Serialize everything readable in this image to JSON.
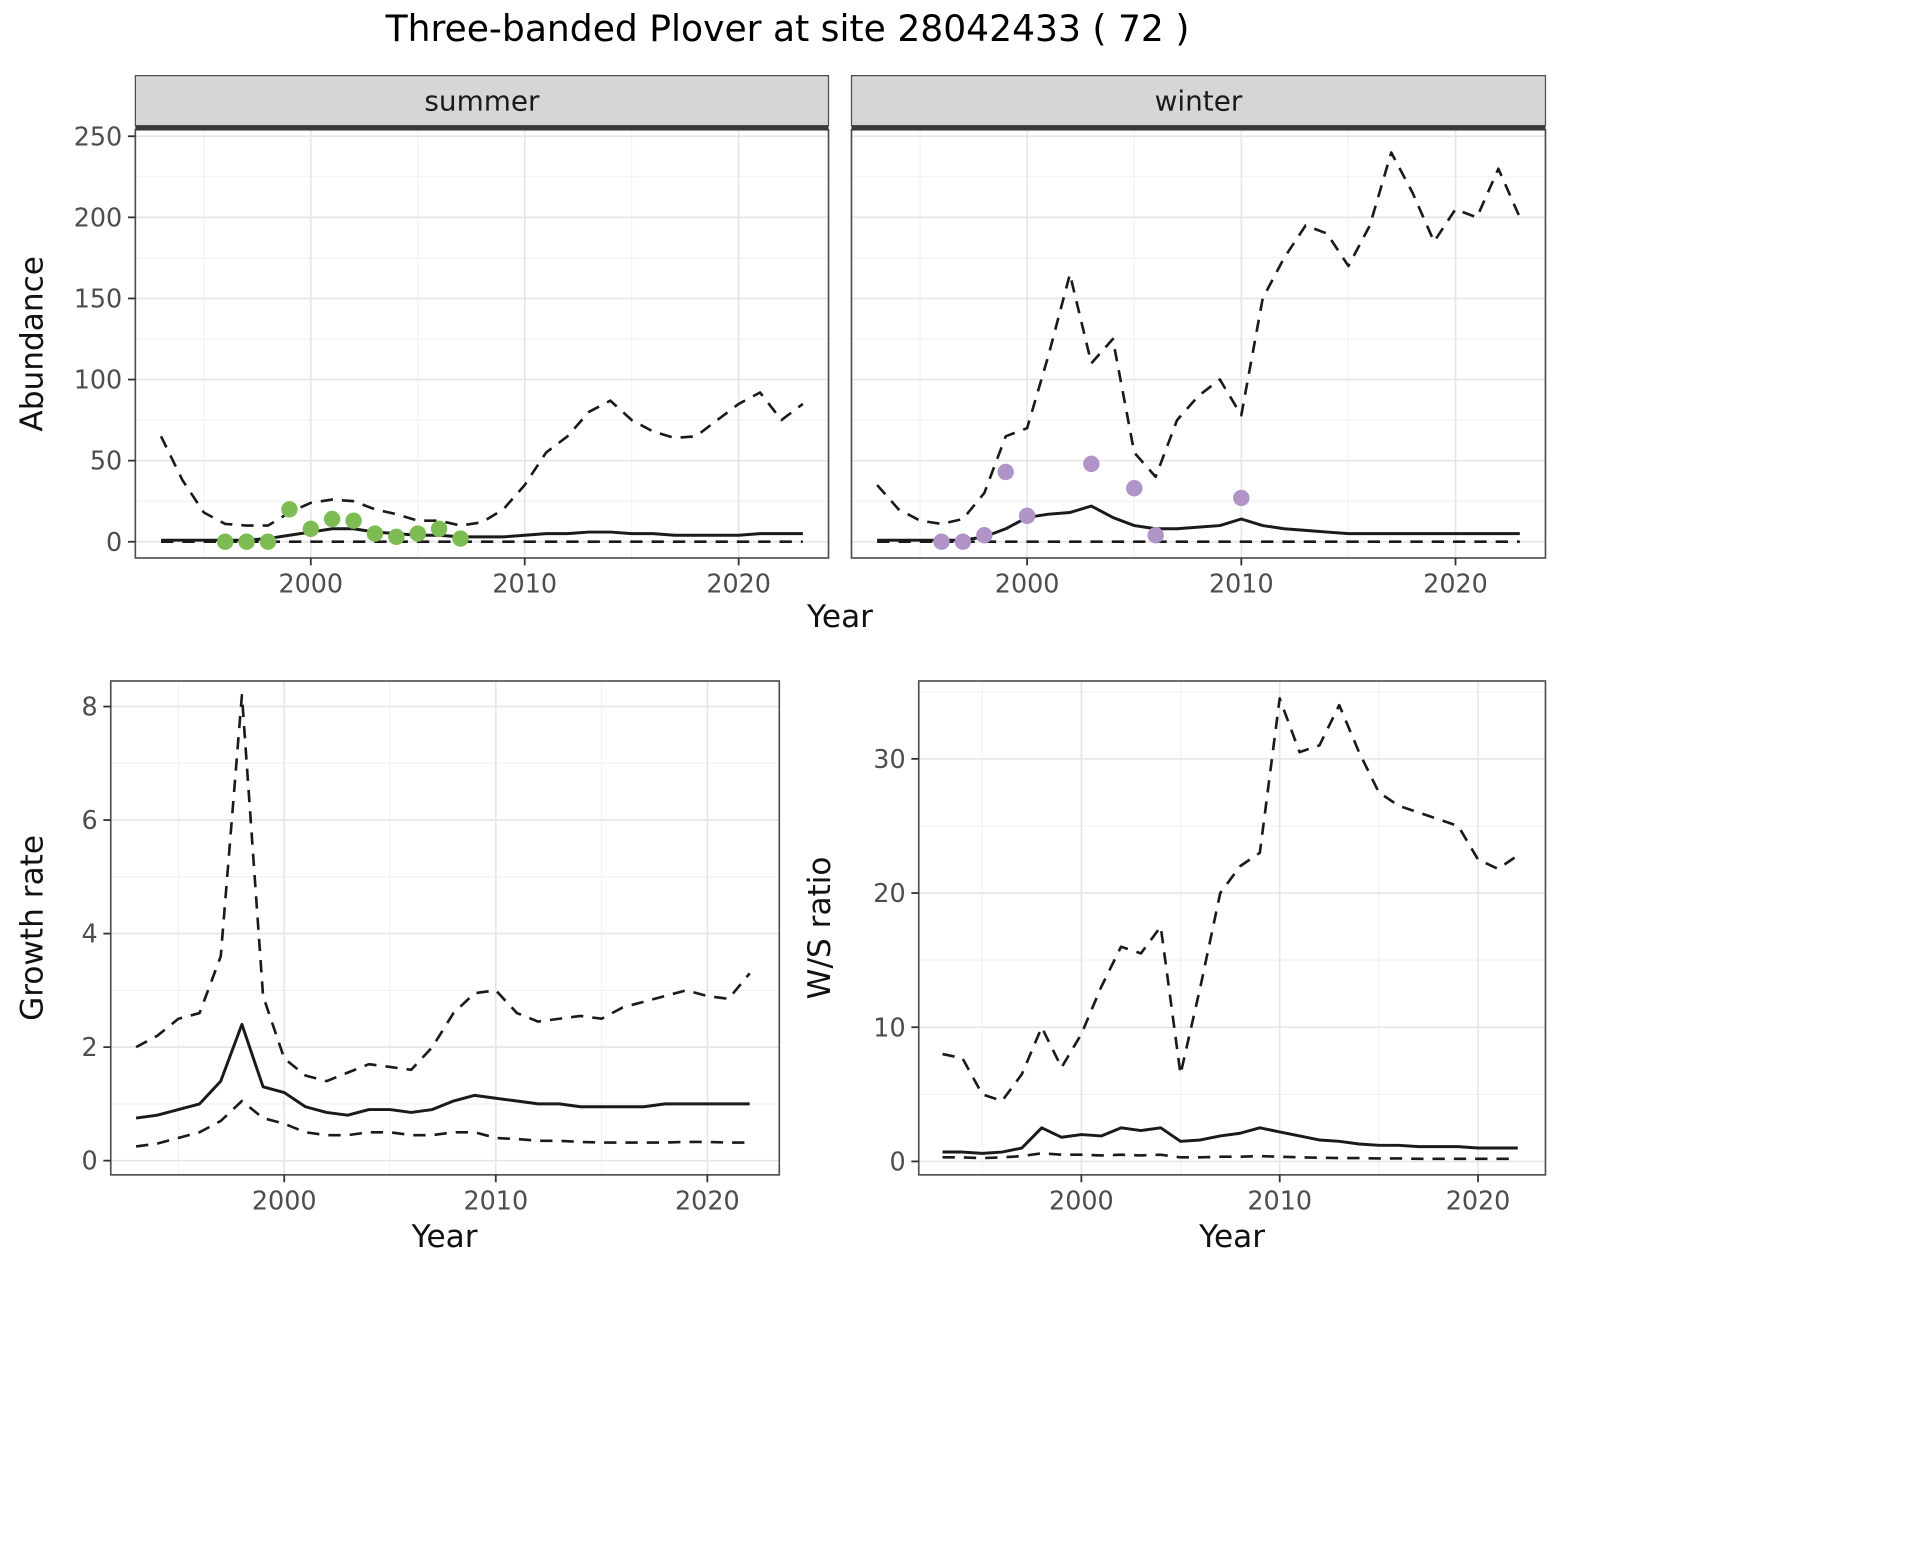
{
  "title": "Three-banded Plover at site 28042433 ( 72 )",
  "theme": {
    "strip_bg": "#d6d6d6",
    "strip_border": "#4d4d4d",
    "strip_underline": "#383838",
    "panel_border": "#4d4d4d",
    "grid_major": "#e6e6e6",
    "grid_minor": "#f2f2f2",
    "line_color": "#1a1a1a",
    "tick_color": "#333333",
    "tick_label_color": "#4d4d4d",
    "summer_point_color": "#7cbc52",
    "winter_point_color": "#b093c7"
  },
  "chart_data": [
    {
      "id": "abundance-summer",
      "type": "line",
      "facet_label": "summer",
      "xlabel": "Year",
      "ylabel": "Abundance",
      "xlim": [
        1991.8,
        2024.2
      ],
      "ylim": [
        -10,
        254
      ],
      "xticks": [
        2000,
        2010,
        2020
      ],
      "xticks_minor": [
        1995,
        2005,
        2015
      ],
      "yticks": [
        0,
        50,
        100,
        150,
        200,
        250
      ],
      "yticks_minor": [
        25,
        75,
        125,
        175,
        225
      ],
      "x": [
        1993,
        1994,
        1995,
        1996,
        1997,
        1998,
        1999,
        2000,
        2001,
        2002,
        2003,
        2004,
        2005,
        2006,
        2007,
        2008,
        2009,
        2010,
        2011,
        2012,
        2013,
        2014,
        2015,
        2016,
        2017,
        2018,
        2019,
        2020,
        2021,
        2022,
        2023
      ],
      "series": [
        {
          "name": "median",
          "style": "solid",
          "values": [
            1,
            1,
            1,
            1,
            1,
            2,
            4,
            6,
            8,
            8,
            6,
            5,
            4,
            4,
            3,
            3,
            3,
            4,
            5,
            5,
            6,
            6,
            5,
            5,
            4,
            4,
            4,
            4,
            5,
            5,
            5
          ]
        },
        {
          "name": "upper-ci",
          "style": "dashed",
          "values": [
            65,
            38,
            18,
            11,
            10,
            10,
            18,
            24,
            26,
            25,
            20,
            17,
            13,
            13,
            10,
            12,
            20,
            35,
            55,
            65,
            80,
            87,
            75,
            68,
            64,
            65,
            75,
            85,
            92,
            75,
            85
          ]
        },
        {
          "name": "lower-ci",
          "style": "dashed",
          "values": [
            0,
            0,
            0,
            0,
            0,
            0,
            0,
            0,
            0,
            0,
            0,
            0,
            0,
            0,
            0,
            0,
            0,
            0,
            0,
            0,
            0,
            0,
            0,
            0,
            0,
            0,
            0,
            0,
            0,
            0,
            0
          ]
        }
      ],
      "points": {
        "name": "observed-summer",
        "color": "#7cbc52",
        "x": [
          1996,
          1997,
          1998,
          1999,
          2000,
          2001,
          2002,
          2003,
          2004,
          2005,
          2006,
          2007
        ],
        "y": [
          0,
          0,
          0,
          20,
          8,
          14,
          13,
          5,
          3,
          5,
          8,
          2
        ]
      }
    },
    {
      "id": "abundance-winter",
      "type": "line",
      "facet_label": "winter",
      "xlabel": "Year",
      "ylabel": "Abundance",
      "xlim": [
        1991.8,
        2024.2
      ],
      "ylim": [
        -10,
        254
      ],
      "xticks": [
        2000,
        2010,
        2020
      ],
      "xticks_minor": [
        1995,
        2005,
        2015
      ],
      "yticks": [
        0,
        50,
        100,
        150,
        200,
        250
      ],
      "yticks_minor": [
        25,
        75,
        125,
        175,
        225
      ],
      "x": [
        1993,
        1994,
        1995,
        1996,
        1997,
        1998,
        1999,
        2000,
        2001,
        2002,
        2003,
        2004,
        2005,
        2006,
        2007,
        2008,
        2009,
        2010,
        2011,
        2012,
        2013,
        2014,
        2015,
        2016,
        2017,
        2018,
        2019,
        2020,
        2021,
        2022,
        2023
      ],
      "series": [
        {
          "name": "median",
          "style": "solid",
          "values": [
            1,
            1,
            1,
            1,
            1,
            3,
            8,
            15,
            17,
            18,
            22,
            15,
            10,
            8,
            8,
            9,
            10,
            14,
            10,
            8,
            7,
            6,
            5,
            5,
            5,
            5,
            5,
            5,
            5,
            5,
            5
          ]
        },
        {
          "name": "upper-ci",
          "style": "dashed",
          "values": [
            35,
            20,
            13,
            11,
            14,
            30,
            65,
            70,
            115,
            165,
            110,
            125,
            55,
            40,
            75,
            90,
            100,
            78,
            150,
            175,
            195,
            190,
            170,
            195,
            240,
            215,
            185,
            205,
            200,
            230,
            200
          ]
        },
        {
          "name": "lower-ci",
          "style": "dashed",
          "values": [
            0,
            0,
            0,
            0,
            0,
            0,
            0,
            0,
            0,
            0,
            0,
            0,
            0,
            0,
            0,
            0,
            0,
            0,
            0,
            0,
            0,
            0,
            0,
            0,
            0,
            0,
            0,
            0,
            0,
            0,
            0
          ]
        }
      ],
      "points": {
        "name": "observed-winter",
        "color": "#b093c7",
        "x": [
          1996,
          1997,
          1998,
          1999,
          2000,
          2003,
          2005,
          2006,
          2010
        ],
        "y": [
          0,
          0,
          4,
          43,
          16,
          48,
          33,
          4,
          27
        ]
      }
    },
    {
      "id": "growth-rate",
      "type": "line",
      "facet_label": "",
      "xlabel": "Year",
      "ylabel": "Growth rate",
      "xlim": [
        1991.8,
        2023.4
      ],
      "ylim": [
        -0.25,
        8.45
      ],
      "xticks": [
        2000,
        2010,
        2020
      ],
      "xticks_minor": [
        1995,
        2005,
        2015
      ],
      "yticks": [
        0,
        2,
        4,
        6,
        8
      ],
      "yticks_minor": [
        1,
        3,
        5,
        7
      ],
      "x": [
        1993,
        1994,
        1995,
        1996,
        1997,
        1998,
        1999,
        2000,
        2001,
        2002,
        2003,
        2004,
        2005,
        2006,
        2007,
        2008,
        2009,
        2010,
        2011,
        2012,
        2013,
        2014,
        2015,
        2016,
        2017,
        2018,
        2019,
        2020,
        2021,
        2022
      ],
      "series": [
        {
          "name": "median",
          "style": "solid",
          "values": [
            0.75,
            0.8,
            0.9,
            1.0,
            1.4,
            2.4,
            1.3,
            1.2,
            0.95,
            0.85,
            0.8,
            0.9,
            0.9,
            0.85,
            0.9,
            1.05,
            1.15,
            1.1,
            1.05,
            1.0,
            1.0,
            0.95,
            0.95,
            0.95,
            0.95,
            1.0,
            1.0,
            1.0,
            1.0,
            1.0
          ]
        },
        {
          "name": "upper-ci",
          "style": "dashed",
          "values": [
            2.0,
            2.2,
            2.5,
            2.6,
            3.6,
            8.2,
            2.9,
            1.8,
            1.5,
            1.4,
            1.55,
            1.7,
            1.65,
            1.6,
            2.0,
            2.6,
            2.95,
            3.0,
            2.6,
            2.45,
            2.5,
            2.55,
            2.5,
            2.7,
            2.8,
            2.9,
            3.0,
            2.9,
            2.85,
            3.3
          ]
        },
        {
          "name": "lower-ci",
          "style": "dashed",
          "values": [
            0.25,
            0.3,
            0.4,
            0.5,
            0.7,
            1.05,
            0.75,
            0.65,
            0.5,
            0.45,
            0.45,
            0.5,
            0.5,
            0.45,
            0.45,
            0.5,
            0.5,
            0.4,
            0.38,
            0.35,
            0.35,
            0.33,
            0.32,
            0.32,
            0.32,
            0.32,
            0.33,
            0.33,
            0.32,
            0.32
          ]
        }
      ]
    },
    {
      "id": "ws-ratio",
      "type": "line",
      "facet_label": "",
      "xlabel": "Year",
      "ylabel": "W/S ratio",
      "xlim": [
        1991.8,
        2023.4
      ],
      "ylim": [
        -1,
        35.8
      ],
      "xticks": [
        2000,
        2010,
        2020
      ],
      "xticks_minor": [
        1995,
        2005,
        2015
      ],
      "yticks": [
        0,
        10,
        20,
        30
      ],
      "yticks_minor": [
        5,
        15,
        25,
        35
      ],
      "x": [
        1993,
        1994,
        1995,
        1996,
        1997,
        1998,
        1999,
        2000,
        2001,
        2002,
        2003,
        2004,
        2005,
        2006,
        2007,
        2008,
        2009,
        2010,
        2011,
        2012,
        2013,
        2014,
        2015,
        2016,
        2017,
        2018,
        2019,
        2020,
        2021,
        2022
      ],
      "series": [
        {
          "name": "median",
          "style": "solid",
          "values": [
            0.7,
            0.7,
            0.6,
            0.7,
            1.0,
            2.5,
            1.8,
            2.0,
            1.9,
            2.5,
            2.3,
            2.5,
            1.5,
            1.6,
            1.9,
            2.1,
            2.5,
            2.2,
            1.9,
            1.6,
            1.5,
            1.3,
            1.2,
            1.2,
            1.1,
            1.1,
            1.1,
            1.0,
            1.0,
            1.0
          ]
        },
        {
          "name": "upper-ci",
          "style": "dashed",
          "values": [
            8.0,
            7.7,
            5.0,
            4.5,
            6.5,
            10.0,
            7.0,
            9.5,
            13.0,
            16.0,
            15.5,
            17.5,
            6.5,
            13.0,
            20.0,
            22.0,
            23.0,
            34.5,
            30.5,
            31.0,
            34.0,
            30.5,
            27.5,
            26.5,
            26.0,
            25.5,
            25.0,
            22.5,
            21.8,
            22.8
          ]
        },
        {
          "name": "lower-ci",
          "style": "dashed",
          "values": [
            0.3,
            0.3,
            0.25,
            0.3,
            0.4,
            0.6,
            0.5,
            0.5,
            0.45,
            0.5,
            0.45,
            0.5,
            0.3,
            0.3,
            0.35,
            0.35,
            0.4,
            0.35,
            0.3,
            0.28,
            0.25,
            0.25,
            0.22,
            0.22,
            0.2,
            0.2,
            0.2,
            0.2,
            0.2,
            0.2
          ]
        }
      ]
    }
  ]
}
